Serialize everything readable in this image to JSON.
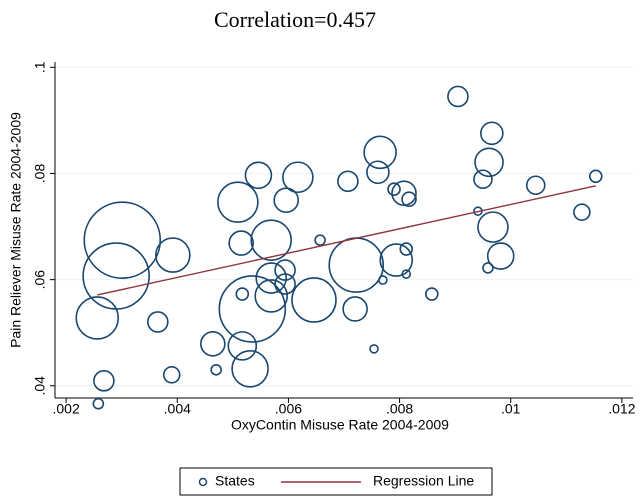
{
  "chart_data": {
    "type": "bubble",
    "title": "Correlation=0.457",
    "x_label": "OxyContin Misuse Rate 2004-2009",
    "y_label": "Pain Reliever Misuse Rate 2004-2009",
    "xlim": [
      0.0018,
      0.0122
    ],
    "ylim": [
      0.0377,
      0.101
    ],
    "xticks": [
      {
        "value": 0.002,
        "label": ".002"
      },
      {
        "value": 0.004,
        "label": ".004"
      },
      {
        "value": 0.006,
        "label": ".006"
      },
      {
        "value": 0.008,
        "label": ".008"
      },
      {
        "value": 0.01,
        "label": ".01"
      },
      {
        "value": 0.012,
        "label": ".012"
      }
    ],
    "yticks": [
      {
        "value": 0.04,
        "label": ".04"
      },
      {
        "value": 0.06,
        "label": ".06"
      },
      {
        "value": 0.08,
        "label": ".08"
      },
      {
        "value": 0.1,
        "label": ".1"
      }
    ],
    "grid": true,
    "legend": "bottom",
    "series": [
      {
        "name": "States",
        "color": "#1a476f",
        "x": [
          0.00301,
          0.0029,
          0.00256,
          0.00268,
          0.00258,
          0.00365,
          0.00392,
          0.0039,
          0.00464,
          0.0047,
          0.00509,
          0.00515,
          0.00517,
          0.00517,
          0.00535,
          0.00531,
          0.00546,
          0.00569,
          0.00569,
          0.00569,
          0.00594,
          0.00594,
          0.00596,
          0.00617,
          0.00646,
          0.00657,
          0.00707,
          0.00722,
          0.0072,
          0.00754,
          0.00765,
          0.00761,
          0.0077,
          0.0079,
          0.00794,
          0.00808,
          0.00812,
          0.00812,
          0.00817,
          0.00858,
          0.00905,
          0.00941,
          0.0095,
          0.00961,
          0.00966,
          0.00968,
          0.00959,
          0.00982,
          0.01045,
          0.01128,
          0.01153
        ],
        "values": [
          0.06744,
          0.06068,
          0.05278,
          0.04094,
          0.03662,
          0.05203,
          0.06462,
          0.04207,
          0.0479,
          0.04301,
          0.07459,
          0.06688,
          0.05729,
          0.04752,
          0.05447,
          0.0432,
          0.07966,
          0.06744,
          0.0603,
          0.05692,
          0.0618,
          0.05917,
          0.07496,
          0.07929,
          0.05617,
          0.06744,
          0.07853,
          0.06274,
          0.05447,
          0.04695,
          0.08398,
          0.08023,
          0.05992,
          0.07703,
          0.06368,
          0.07628,
          0.06575,
          0.06105,
          0.07515,
          0.05729,
          0.09451,
          0.0729,
          0.07891,
          0.08211,
          0.08756,
          0.06989,
          0.0622,
          0.06444,
          0.07778,
          0.07271,
          0.07947
        ],
        "sizes": [
          38,
          33,
          21,
          10,
          5,
          10,
          17,
          8,
          12,
          5,
          20,
          12,
          6,
          14,
          33,
          18,
          13,
          20,
          15,
          16,
          10,
          10,
          12,
          15,
          22,
          5,
          10,
          27,
          12,
          4,
          16,
          11,
          4,
          6,
          16,
          12,
          6,
          4,
          7,
          6,
          10,
          4,
          9,
          14,
          11,
          15,
          5,
          13,
          9,
          8,
          6
        ]
      },
      {
        "name": "Regression Line",
        "color": "#90353b",
        "x": [
          0.00256,
          0.01153
        ],
        "values": [
          0.05711,
          0.07767
        ]
      }
    ]
  }
}
